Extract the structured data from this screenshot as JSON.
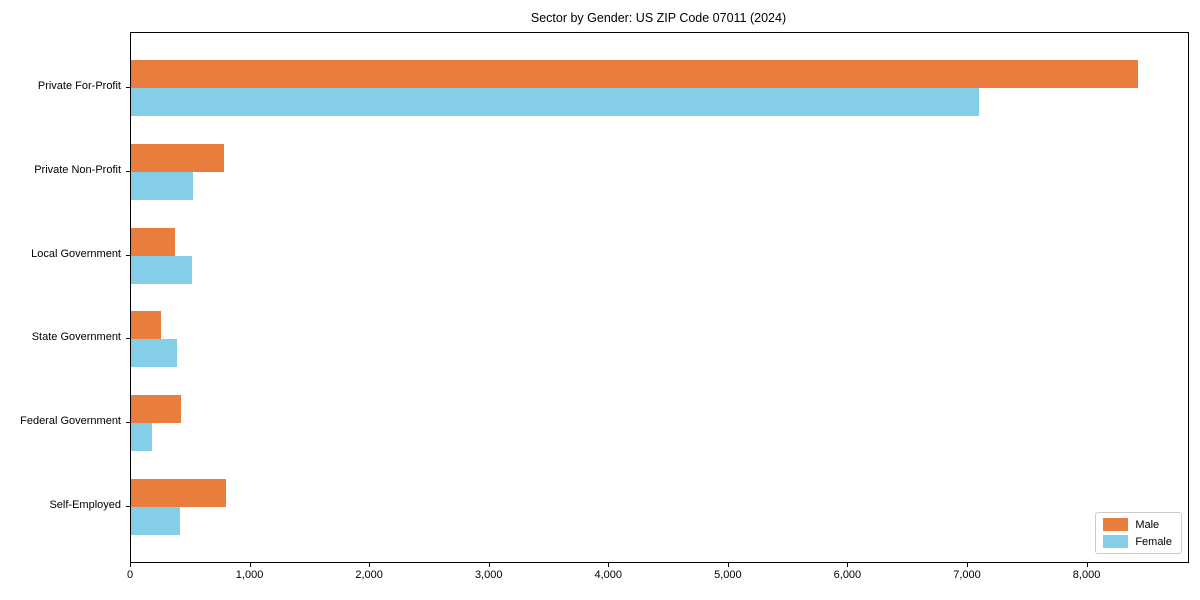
{
  "chart_data": {
    "type": "bar",
    "orientation": "horizontal",
    "title": "Sector by Gender: US ZIP Code 07011 (2024)",
    "categories": [
      "Private For-Profit",
      "Private Non-Profit",
      "Local Government",
      "State Government",
      "Federal Government",
      "Self-Employed"
    ],
    "series": [
      {
        "name": "Male",
        "color": "#e87d3e",
        "values": [
          8420,
          780,
          370,
          250,
          420,
          795
        ]
      },
      {
        "name": "Female",
        "color": "#85cee7",
        "values": [
          7090,
          520,
          510,
          385,
          175,
          410
        ]
      }
    ],
    "xlabel": "",
    "ylabel": "",
    "xlim": [
      0,
      8840
    ],
    "xticks": [
      0,
      1000,
      2000,
      3000,
      4000,
      5000,
      6000,
      7000,
      8000
    ],
    "xtick_labels": [
      "0",
      "1,000",
      "2,000",
      "3,000",
      "4,000",
      "5,000",
      "6,000",
      "7,000",
      "8,000"
    ],
    "grid": false,
    "legend": {
      "position": "lower right"
    }
  }
}
